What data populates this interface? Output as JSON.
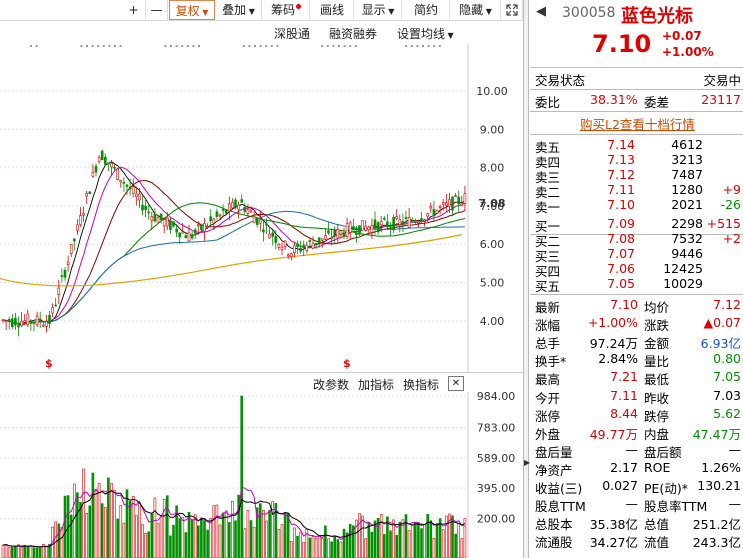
{
  "toolbar": {
    "plus": "+",
    "minus": "—",
    "fuquan": "复权",
    "diejia": "叠加",
    "chouma": "筹码",
    "huaxian": "画线",
    "xianshi": "显示",
    "jianyue": "简约",
    "yincang": "隐藏",
    "expand_icon": "expand-icon"
  },
  "subbar": {
    "shengutong": "深股通",
    "rongzi": "融资融券",
    "shezhi": "设置均线"
  },
  "price_axis": [
    "10.00",
    "9.00",
    "8.00",
    "7.08",
    "7.00",
    "6.00",
    "5.00",
    "4.00"
  ],
  "volume_bar": {
    "gaicanshu": "改参数",
    "jiazhibiao": "加指标",
    "huanzhibiao": "换指标",
    "close": "✕"
  },
  "volume_axis": [
    "984.00",
    "783.00",
    "589.00",
    "395.00",
    "200.00"
  ],
  "stock": {
    "code": "300058",
    "name": "蓝色光标",
    "price": "7.10",
    "change": "+0.07",
    "change_pct": "+1.00%"
  },
  "status": {
    "label": "交易状态",
    "value": "交易中"
  },
  "weibi": {
    "label": "委比",
    "value": "38.31%",
    "label2": "委差",
    "value2": "23117"
  },
  "promo": "购买L2查看十档行情",
  "asks": [
    {
      "name": "卖五",
      "price": "7.14",
      "vol": "4612",
      "delta": ""
    },
    {
      "name": "卖四",
      "price": "7.13",
      "vol": "3213",
      "delta": ""
    },
    {
      "name": "卖三",
      "price": "7.12",
      "vol": "7487",
      "delta": ""
    },
    {
      "name": "卖二",
      "price": "7.11",
      "vol": "1280",
      "delta": "+9"
    },
    {
      "name": "卖一",
      "price": "7.10",
      "vol": "2021",
      "delta": "-26"
    }
  ],
  "bids": [
    {
      "name": "买一",
      "price": "7.09",
      "vol": "2298",
      "delta": "+515"
    },
    {
      "name": "买二",
      "price": "7.08",
      "vol": "7532",
      "delta": "+2"
    },
    {
      "name": "买三",
      "price": "7.07",
      "vol": "9446",
      "delta": ""
    },
    {
      "name": "买四",
      "price": "7.06",
      "vol": "12425",
      "delta": ""
    },
    {
      "name": "买五",
      "price": "7.05",
      "vol": "10029",
      "delta": ""
    }
  ],
  "stats": [
    {
      "l1": "最新",
      "v1": "7.10",
      "l2": "均价",
      "v2": "7.12"
    },
    {
      "l1": "涨幅",
      "v1": "+1.00%",
      "l2": "涨跌",
      "v2": "▲0.07"
    },
    {
      "l1": "总手",
      "v1": "97.24万",
      "l2": "金额",
      "v2": "6.93亿"
    },
    {
      "l1": "换手*",
      "v1": "2.84%",
      "l2": "量比",
      "v2": "0.80"
    },
    {
      "l1": "最高",
      "v1": "7.21",
      "l2": "最低",
      "v2": "7.05"
    },
    {
      "l1": "今开",
      "v1": "7.11",
      "l2": "昨收",
      "v2": "7.03"
    },
    {
      "l1": "涨停",
      "v1": "8.44",
      "l2": "跌停",
      "v2": "5.62"
    },
    {
      "l1": "外盘",
      "v1": "49.77万",
      "l2": "内盘",
      "v2": "47.47万"
    },
    {
      "l1": "盘后量",
      "v1": "—",
      "l2": "盘后额",
      "v2": "—"
    },
    {
      "l1": "净资产",
      "v1": "2.17",
      "l2": "ROE",
      "v2": "1.26%"
    },
    {
      "l1": "收益(三)",
      "v1": "0.027",
      "l2": "PE(动)*",
      "v2": "130.21"
    },
    {
      "l1": "股息TTM",
      "v1": "—",
      "l2": "股息率TTM",
      "v2": "—"
    },
    {
      "l1": "总股本",
      "v1": "35.38亿",
      "l2": "总值",
      "v2": "251.2亿"
    },
    {
      "l1": "流通股",
      "v1": "34.27亿",
      "l2": "流值",
      "v2": "243.3亿"
    }
  ],
  "colors": {
    "up": "#e00000",
    "down": "#009000",
    "ma5": "#000000",
    "ma10": "#c800c8",
    "ma20": "#8b0000",
    "ma60": "#008000",
    "ma120": "#1a6fb0",
    "ma250": "#e0a000"
  }
}
